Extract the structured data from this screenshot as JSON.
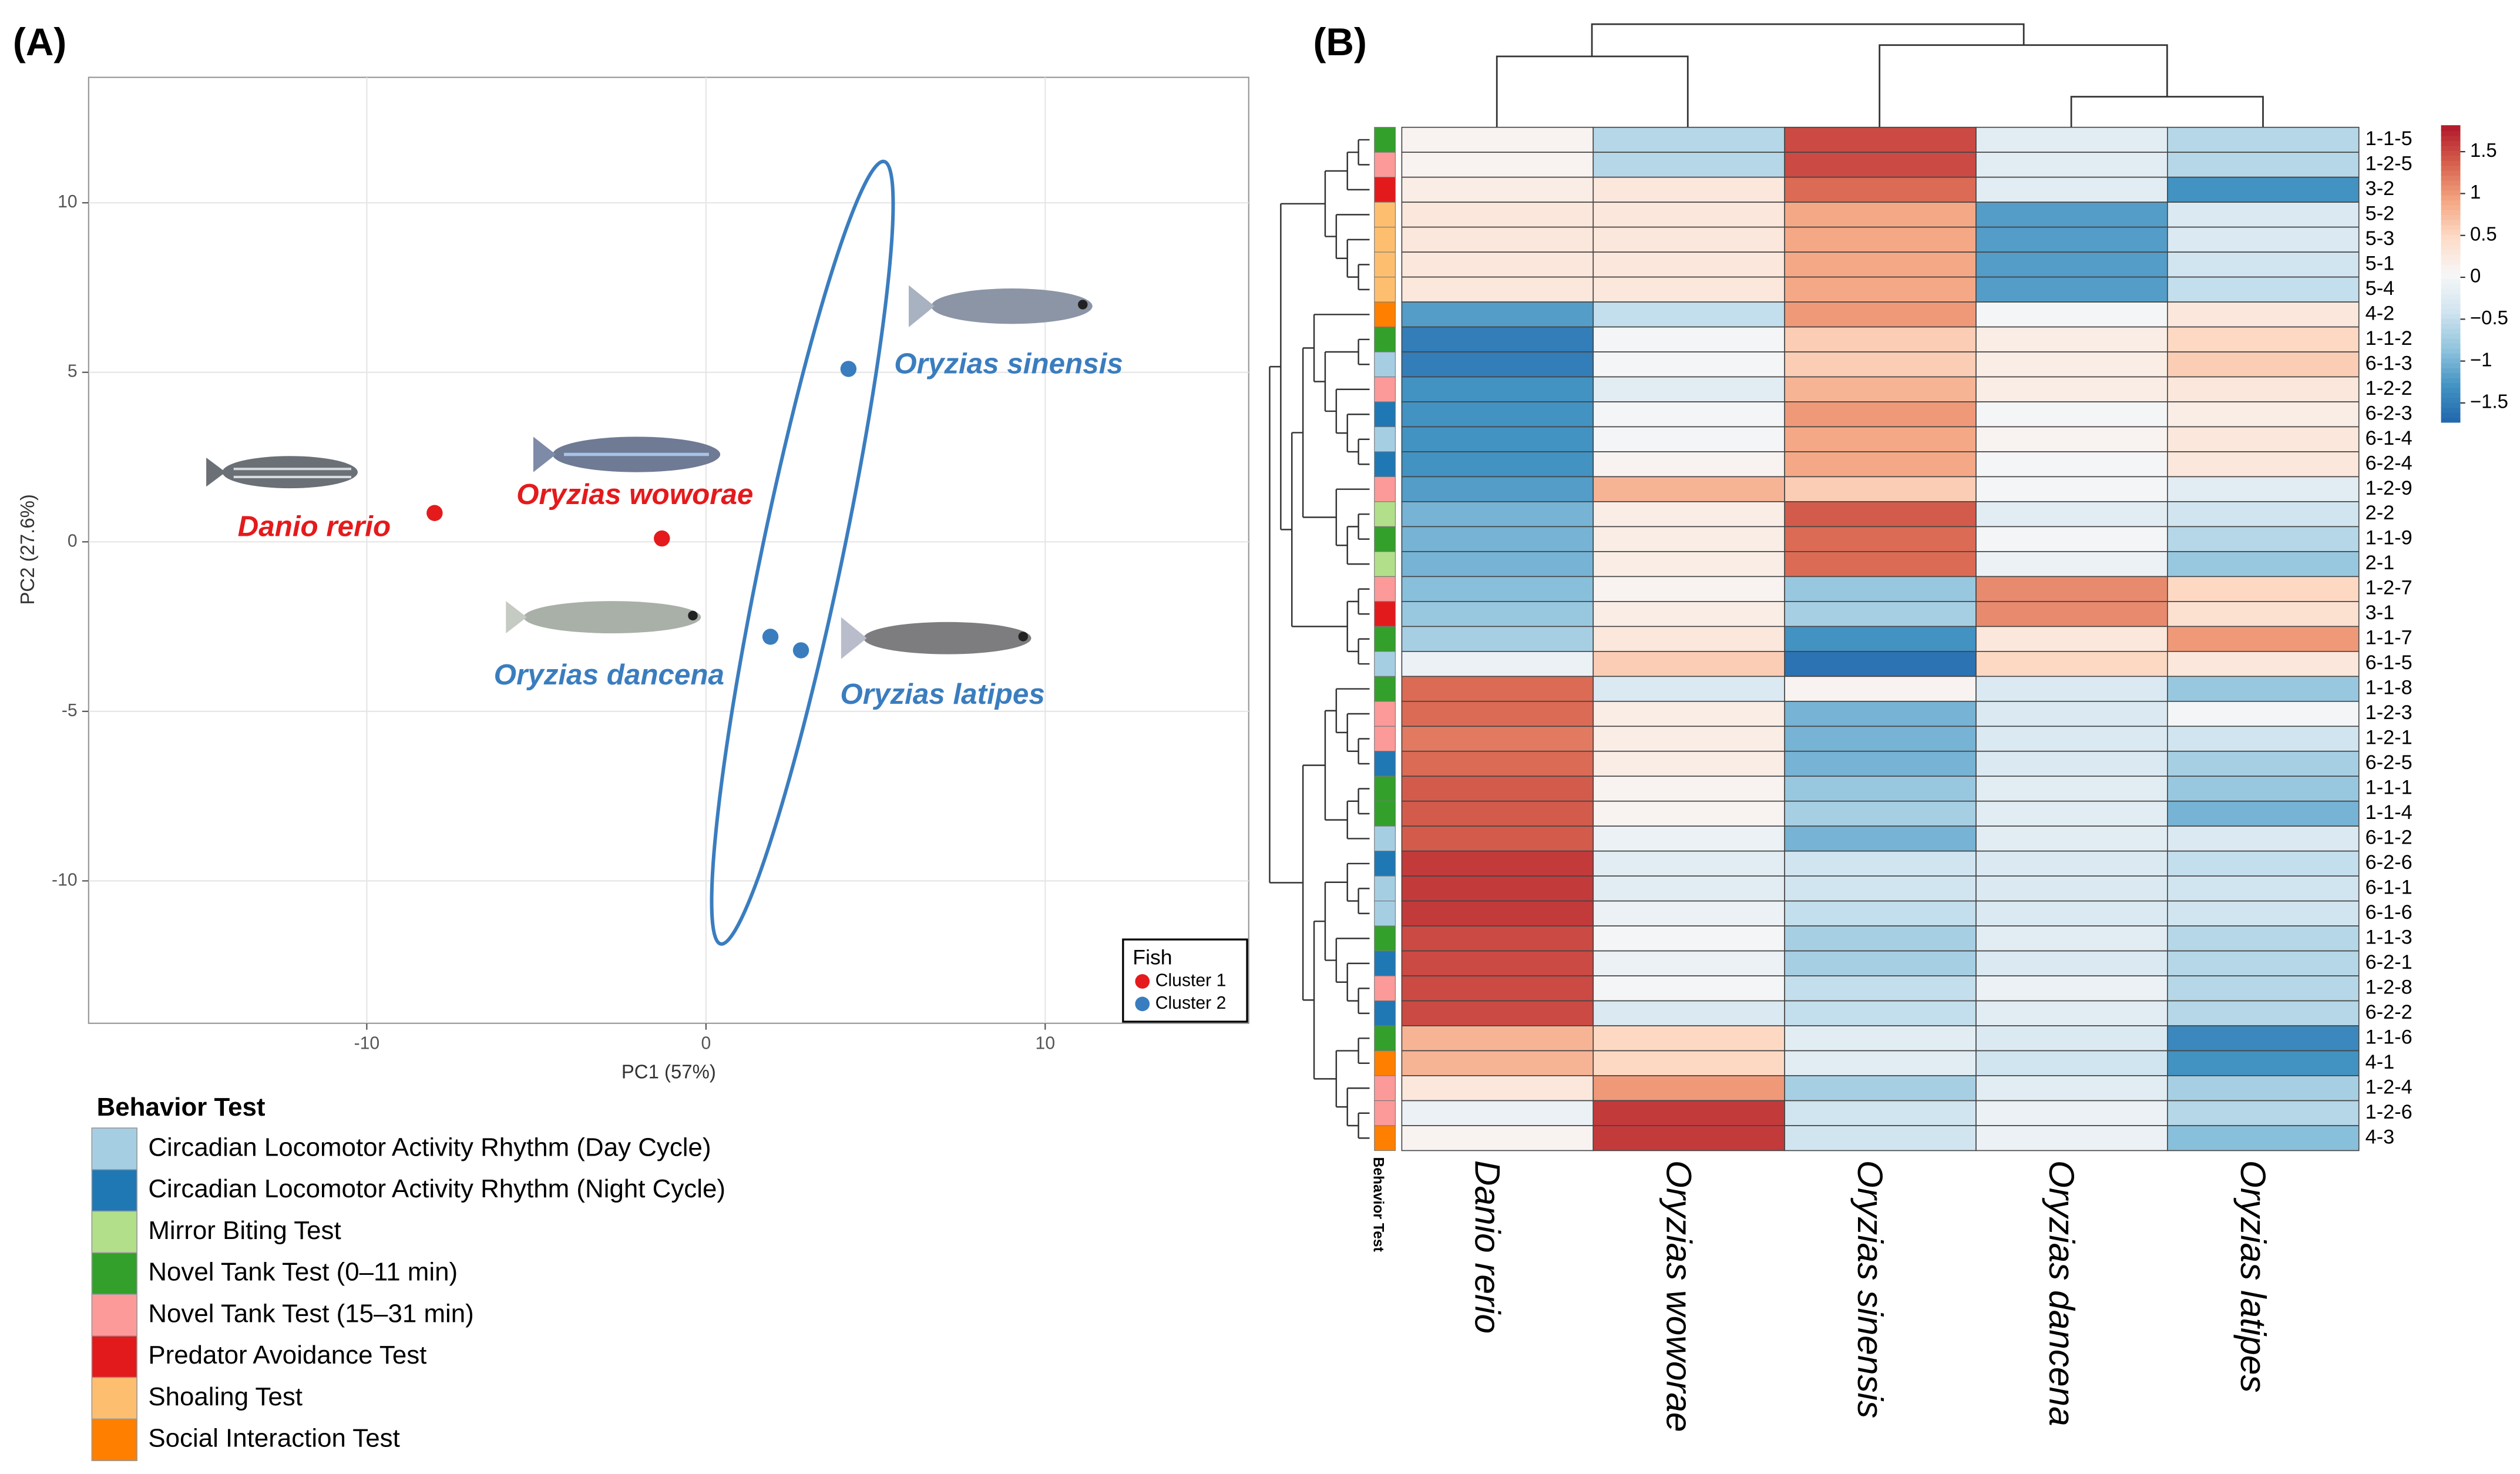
{
  "chart_data": [
    {
      "type": "scatter",
      "panel_label": "(A)",
      "xlabel": "PC1 (57%)",
      "ylabel": "PC2 (27.6%)",
      "xlim": [
        -18.2,
        16.0
      ],
      "ylim": [
        -14.2,
        13.7
      ],
      "xticks": [
        -10,
        0,
        10
      ],
      "yticks": [
        -10,
        -5,
        0,
        5,
        10
      ],
      "grid": true,
      "legend_title": "Fish",
      "series": [
        {
          "name": "Cluster 1",
          "color": "#e41a1c",
          "x": [
            -8,
            -1.3
          ],
          "y": [
            0.85,
            0.1
          ],
          "labels": [
            "Danio rerio",
            "Oryzias woworae"
          ]
        },
        {
          "name": "Cluster 2",
          "color": "#3a7dbf",
          "x": [
            4.2,
            1.9,
            2.8
          ],
          "y": [
            5.1,
            -2.8,
            -3.2
          ],
          "labels": [
            "Oryzias sinensis",
            "Oryzias dancena",
            "Oryzias latipes"
          ]
        }
      ]
    },
    {
      "type": "heatmap",
      "panel_label": "(B)",
      "annotation_title": "Behavior Test",
      "columns": [
        "Danio rerio",
        "Oryzias woworae",
        "Oryzias sinensis",
        "Oryzias dancena",
        "Oryzias latipes"
      ],
      "rows": [
        "1-1-5",
        "1-2-5",
        "3-2",
        "5-2",
        "5-3",
        "5-1",
        "5-4",
        "4-2",
        "1-1-2",
        "6-1-3",
        "1-2-2",
        "6-2-3",
        "6-1-4",
        "6-2-4",
        "1-2-9",
        "2-2",
        "1-1-9",
        "2-1",
        "1-2-7",
        "3-1",
        "1-1-7",
        "6-1-5",
        "1-1-8",
        "1-2-3",
        "1-2-1",
        "6-2-5",
        "1-1-1",
        "1-1-4",
        "6-1-2",
        "6-2-6",
        "6-1-1",
        "6-1-6",
        "1-1-3",
        "6-2-1",
        "1-2-8",
        "6-2-2",
        "1-1-6",
        "4-1",
        "1-2-4",
        "1-2-6",
        "4-3"
      ],
      "row_group": [
        3,
        4,
        5,
        6,
        6,
        6,
        6,
        7,
        3,
        0,
        4,
        1,
        0,
        1,
        4,
        2,
        3,
        2,
        4,
        5,
        3,
        0,
        3,
        4,
        4,
        1,
        3,
        3,
        0,
        1,
        0,
        0,
        3,
        1,
        4,
        1,
        3,
        7,
        4,
        4,
        7
      ],
      "groups": [
        {
          "name": "Circadian Locomotor Activity Rhythm (Day Cycle)",
          "color": "#a6cee3"
        },
        {
          "name": "Circadian Locomotor Activity Rhythm (Night Cycle)",
          "color": "#1f78b4"
        },
        {
          "name": "Mirror Biting Test",
          "color": "#b2df8a"
        },
        {
          "name": "Novel Tank Test (0–11 min)",
          "color": "#33a02c"
        },
        {
          "name": "Novel Tank Test (15–31 min)",
          "color": "#fb9a99"
        },
        {
          "name": "Predator Avoidance Test",
          "color": "#e31a1c"
        },
        {
          "name": "Shoaling Test",
          "color": "#fdbf6f"
        },
        {
          "name": "Social Interaction Test",
          "color": "#ff7f00"
        }
      ],
      "values": [
        [
          0.1,
          -0.6,
          1.5,
          -0.2,
          -0.6
        ],
        [
          0.1,
          -0.6,
          1.5,
          -0.2,
          -0.6
        ],
        [
          0.2,
          0.3,
          1.3,
          -0.2,
          -1.3
        ],
        [
          0.3,
          0.3,
          0.9,
          -1.2,
          -0.3
        ],
        [
          0.3,
          0.3,
          0.9,
          -1.2,
          -0.3
        ],
        [
          0.3,
          0.3,
          0.9,
          -1.2,
          -0.4
        ],
        [
          0.3,
          0.3,
          0.9,
          -1.2,
          -0.5
        ],
        [
          -1.2,
          -0.5,
          1.0,
          0.0,
          0.3
        ],
        [
          -1.5,
          0.0,
          0.6,
          0.2,
          0.5
        ],
        [
          -1.5,
          0.0,
          0.6,
          0.2,
          0.6
        ],
        [
          -1.3,
          -0.2,
          0.8,
          0.2,
          0.3
        ],
        [
          -1.3,
          0.0,
          1.0,
          0.0,
          0.2
        ],
        [
          -1.3,
          0.0,
          0.9,
          0.1,
          0.3
        ],
        [
          -1.3,
          0.1,
          0.9,
          0.0,
          0.3
        ],
        [
          -1.2,
          0.8,
          0.6,
          0.0,
          -0.2
        ],
        [
          -1.0,
          0.2,
          1.4,
          -0.2,
          -0.4
        ],
        [
          -1.0,
          0.2,
          1.3,
          0.0,
          -0.6
        ],
        [
          -1.0,
          0.2,
          1.3,
          -0.1,
          -0.8
        ],
        [
          -0.9,
          0.1,
          -0.8,
          1.1,
          0.5
        ],
        [
          -0.8,
          0.2,
          -0.7,
          1.1,
          0.4
        ],
        [
          -0.7,
          0.3,
          -1.3,
          0.3,
          1.0
        ],
        [
          -0.1,
          0.6,
          -1.6,
          0.5,
          0.3
        ],
        [
          1.3,
          -0.3,
          0.1,
          -0.3,
          -0.8
        ],
        [
          1.3,
          0.2,
          -1.0,
          -0.3,
          0.0
        ],
        [
          1.2,
          0.2,
          -1.0,
          -0.3,
          -0.4
        ],
        [
          1.3,
          0.2,
          -1.0,
          -0.3,
          -0.7
        ],
        [
          1.4,
          0.1,
          -0.8,
          -0.2,
          -0.8
        ],
        [
          1.4,
          0.1,
          -0.7,
          -0.2,
          -1.0
        ],
        [
          1.4,
          -0.1,
          -1.0,
          -0.2,
          -0.3
        ],
        [
          1.6,
          -0.2,
          -0.4,
          -0.3,
          -0.5
        ],
        [
          1.6,
          -0.2,
          -0.4,
          -0.3,
          -0.4
        ],
        [
          1.6,
          -0.1,
          -0.5,
          -0.3,
          -0.4
        ],
        [
          1.5,
          0.0,
          -0.7,
          -0.2,
          -0.6
        ],
        [
          1.5,
          -0.1,
          -0.7,
          -0.3,
          -0.6
        ],
        [
          1.5,
          0.0,
          -0.5,
          -0.1,
          -0.6
        ],
        [
          1.5,
          -0.3,
          -0.5,
          -0.2,
          -0.6
        ],
        [
          0.8,
          0.5,
          -0.2,
          -0.3,
          -1.4
        ],
        [
          0.8,
          0.5,
          -0.2,
          -0.4,
          -1.3
        ],
        [
          0.3,
          1.0,
          -0.7,
          -0.2,
          -0.7
        ],
        [
          -0.1,
          1.6,
          -0.4,
          -0.1,
          -0.6
        ],
        [
          0.1,
          1.6,
          -0.4,
          -0.1,
          -0.9
        ]
      ],
      "colorscale": [
        "#2166ac",
        "#4393c3",
        "#92c5de",
        "#d1e5f0",
        "#f7f7f7",
        "#fddbc7",
        "#f4a582",
        "#d6604d",
        "#b2182b"
      ],
      "zlim": [
        -1.73,
        1.81
      ],
      "zticks": [
        1.5,
        1,
        0.5,
        0,
        {
          "value": -0.5,
          "label": "−0.5"
        },
        {
          "value": -1,
          "label": "−1"
        },
        {
          "value": -1.5,
          "label": "−1.5"
        }
      ]
    }
  ]
}
